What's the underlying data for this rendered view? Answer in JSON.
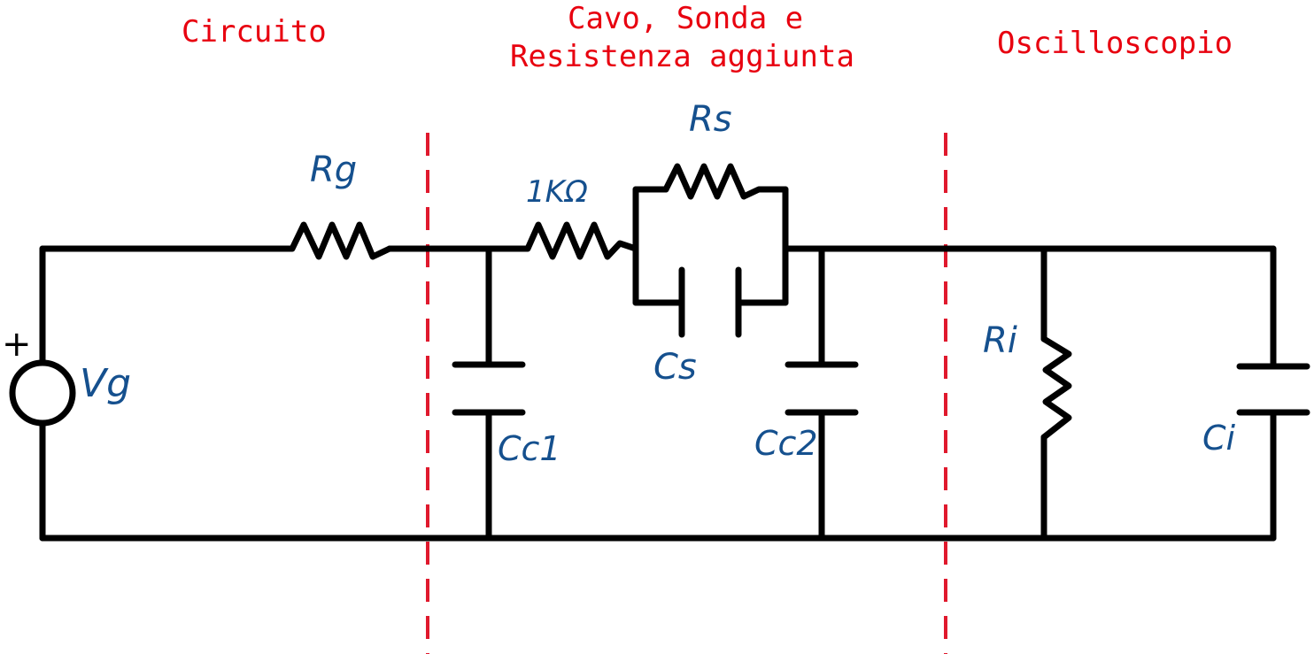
{
  "colors": {
    "wire": "#000000",
    "divider": "#e0192d",
    "section_title": "#e8000f",
    "component_label": "#15508e",
    "background": "#ffffff"
  },
  "sections": {
    "left": "Circuito",
    "middle_line1": "Cavo, Sonda e",
    "middle_line2": "Resistenza aggiunta",
    "right": "Oscilloscopio"
  },
  "labels": {
    "source_plus": "+",
    "vg": "Vg",
    "rg": "Rg",
    "r_1k": "1KΩ",
    "rs": "Rs",
    "cs": "Cs",
    "cc1": "Cc1",
    "cc2": "Cc2",
    "ri": "Ri",
    "ci": "Ci"
  }
}
